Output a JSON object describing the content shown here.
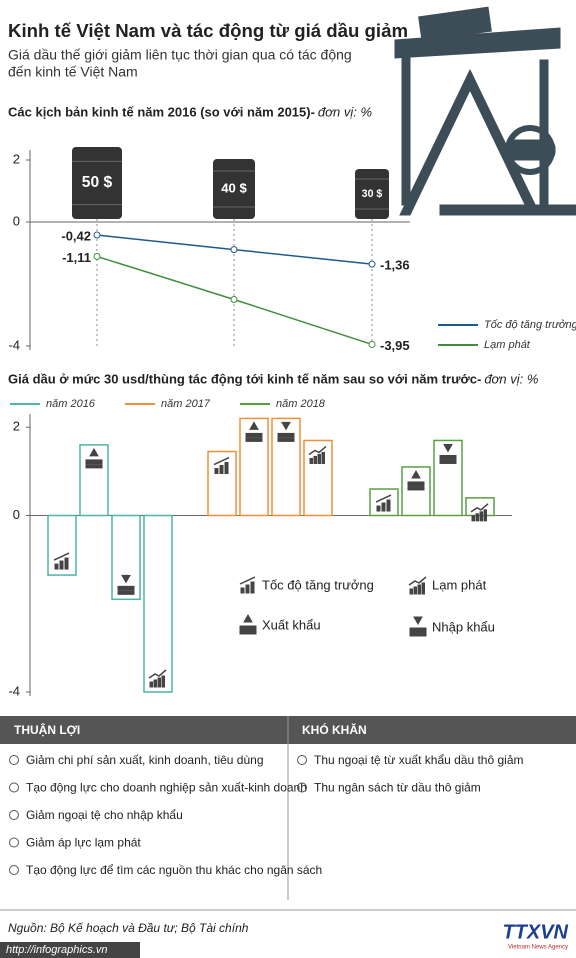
{
  "header": {
    "title": "Kinh tế Việt Nam và tác động từ giá dầu giảm",
    "subtitle_lines": [
      "Giá dầu thế giới giảm liên tục thời gian qua có tác động",
      "đến kinh tế Việt Nam"
    ]
  },
  "chart_data": [
    {
      "type": "line",
      "title": "Các kịch bản kinh tế năm 2016 (so với năm 2015)-",
      "unit": "đơn vị: %",
      "categories": [
        "50 $",
        "40 $",
        "30 $"
      ],
      "series": [
        {
          "name": "Tốc độ tăng trưởng",
          "color": "#1f5a8c",
          "values": [
            -0.42,
            -0.89,
            -1.36
          ],
          "value_labels": [
            "-0,42",
            null,
            "-1,36"
          ]
        },
        {
          "name": "Lạm phát",
          "color": "#3f8f3a",
          "values": [
            -1.11,
            -2.5,
            -3.95
          ],
          "value_labels": [
            "-1,11",
            null,
            "-3,95"
          ]
        }
      ],
      "ylim": [
        -4,
        2
      ],
      "yticks": [
        -4,
        0,
        2
      ]
    },
    {
      "type": "bar",
      "title": "Giá dầu ở mức 30 usd/thùng tác động tới kinh tế năm sau so với năm trước-",
      "unit": "đơn vị: %",
      "categories": [
        "Tốc độ tăng trưởng",
        "Xuất khẩu",
        "Nhập khẩu",
        "Lạm phát"
      ],
      "series": [
        {
          "name": "năm 2016",
          "color": "#4fb3a9",
          "values": [
            -1.35,
            1.6,
            -1.9,
            -4.0
          ]
        },
        {
          "name": "năm 2017",
          "color": "#f0913a",
          "values": [
            1.45,
            2.2,
            2.2,
            1.7
          ]
        },
        {
          "name": "năm 2018",
          "color": "#5aa040",
          "values": [
            0.6,
            1.1,
            1.7,
            0.4
          ]
        }
      ],
      "ylim": [
        -4,
        2.3
      ],
      "yticks": [
        -4,
        0,
        2
      ]
    }
  ],
  "advantages": {
    "title": "THUẬN LỢI",
    "items": [
      "Giảm chi phí sản xuất, kinh doanh, tiêu dùng",
      "Tạo động lực cho doanh nghiệp sản xuất-kinh doanh",
      "Giảm ngoại tệ cho nhập khẩu",
      "Giảm áp lực lạm phát",
      "Tạo động lực để tìm các nguồn thu khác cho ngân sách"
    ]
  },
  "difficulties": {
    "title": "KHÓ KHĂN",
    "items": [
      "Thu ngoại tệ từ xuất khẩu dầu thô giảm",
      "Thu ngân sách từ dầu thô giảm"
    ]
  },
  "footer": {
    "source": "Nguồn: Bộ Kế hoạch và Đầu tư; Bộ Tài chính",
    "url": "http://infographics.vn",
    "logo": "TTXVN",
    "logo_sub": "Vietnam News Agency"
  }
}
